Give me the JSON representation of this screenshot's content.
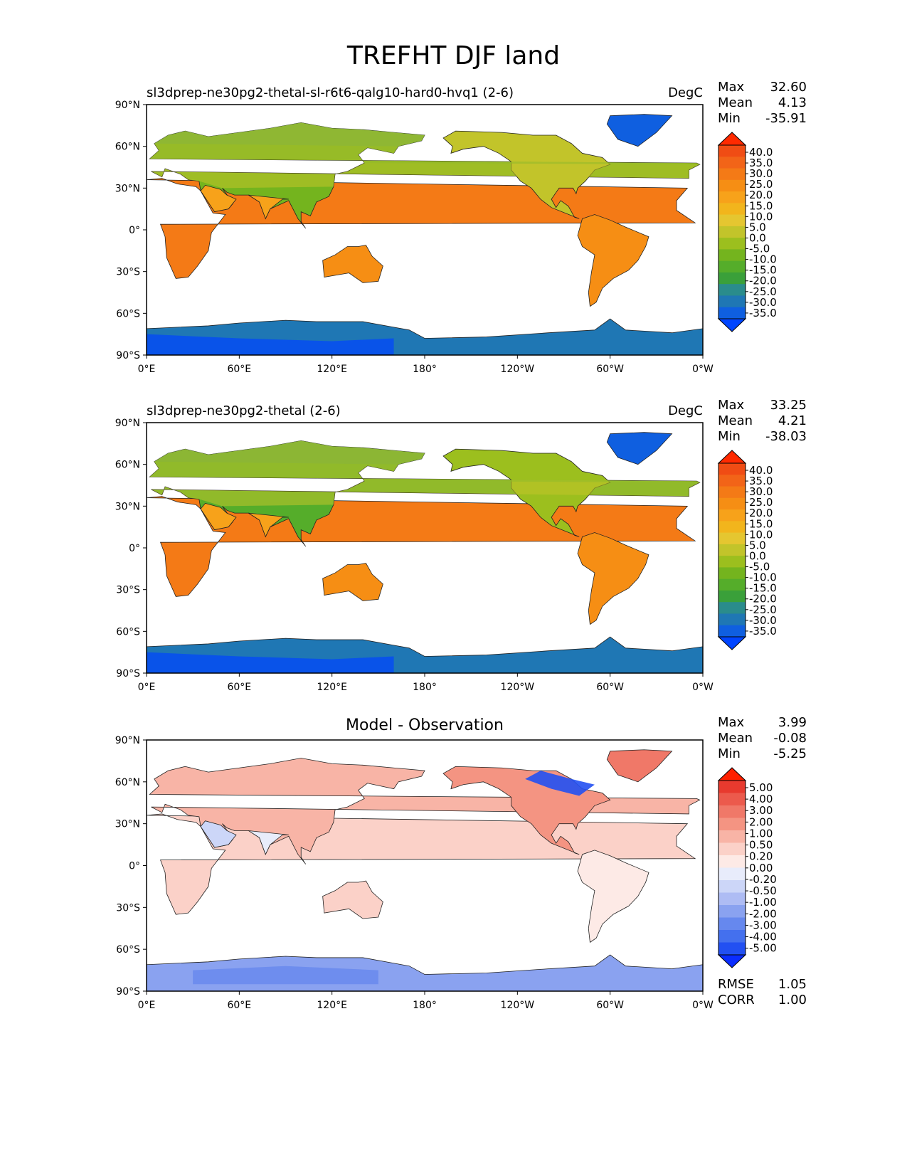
{
  "figure_title": "TREFHT DJF land",
  "panels": [
    {
      "title": "sl3dprep-ne30pg2-thetal-sl-r6t6-qalg10-hard0-hvq1 (2-6)",
      "units": "DegC",
      "stats": [
        {
          "label": "Max",
          "value": "32.60"
        },
        {
          "label": "Mean",
          "value": "4.13"
        },
        {
          "label": "Min",
          "value": "-35.91"
        }
      ],
      "colorbar_ticks": [
        "40.0",
        "35.0",
        "30.0",
        "25.0",
        "20.0",
        "15.0",
        "10.0",
        "5.0",
        "0.0",
        "-5.0",
        "-10.0",
        "-15.0",
        "-20.0",
        "-25.0",
        "-30.0",
        "-35.0"
      ]
    },
    {
      "title": "sl3dprep-ne30pg2-thetal (2-6)",
      "units": "DegC",
      "stats": [
        {
          "label": "Max",
          "value": "33.25"
        },
        {
          "label": "Mean",
          "value": "4.21"
        },
        {
          "label": "Min",
          "value": "-38.03"
        }
      ],
      "colorbar_ticks": [
        "40.0",
        "35.0",
        "30.0",
        "25.0",
        "20.0",
        "15.0",
        "10.0",
        "5.0",
        "0.0",
        "-5.0",
        "-10.0",
        "-15.0",
        "-20.0",
        "-25.0",
        "-30.0",
        "-35.0"
      ]
    },
    {
      "title": "Model - Observation",
      "units": "",
      "stats": [
        {
          "label": "Max",
          "value": "3.99"
        },
        {
          "label": "Mean",
          "value": "-0.08"
        },
        {
          "label": "Min",
          "value": "-5.25"
        }
      ],
      "colorbar_ticks": [
        "5.00",
        "4.00",
        "3.00",
        "2.00",
        "1.00",
        "0.50",
        "0.20",
        "0.00",
        "-0.20",
        "-0.50",
        "-1.00",
        "-2.00",
        "-3.00",
        "-4.00",
        "-5.00"
      ],
      "metrics": [
        {
          "label": "RMSE",
          "value": "1.05"
        },
        {
          "label": "CORR",
          "value": "1.00"
        }
      ]
    }
  ],
  "chart_data": {
    "type": "heatmap",
    "title": "TREFHT DJF land",
    "x_ticks": [
      "0°E",
      "60°E",
      "120°E",
      "180°",
      "120°W",
      "60°W",
      "0°W"
    ],
    "y_ticks": [
      "90°N",
      "60°N",
      "30°N",
      "0°",
      "30°S",
      "60°S",
      "90°S"
    ],
    "xlim": [
      0,
      360
    ],
    "ylim": [
      -90,
      90
    ],
    "temperature_colors": [
      "#0045ff",
      "#0f5fe0",
      "#1f77b4",
      "#2a8c8c",
      "#3aa03a",
      "#55ad2a",
      "#74b41e",
      "#9cbf1e",
      "#c2c42a",
      "#e5c630",
      "#f2b51c",
      "#f7a21a",
      "#f68e14",
      "#f47a16",
      "#f26418",
      "#f04c14",
      "#ff2a00"
    ],
    "diff_colors": [
      "#0a2dff",
      "#2250f2",
      "#4470ee",
      "#6688ee",
      "#8aa2f0",
      "#aebcf4",
      "#ccd6f8",
      "#e8ecfb",
      "#fdeae6",
      "#fbd1c8",
      "#f8b4a6",
      "#f49482",
      "#f07868",
      "#ec5a4c",
      "#e83a2e",
      "#ff2000"
    ],
    "colors": {
      "ocean": "#ffffff",
      "coast": "#222222"
    }
  }
}
